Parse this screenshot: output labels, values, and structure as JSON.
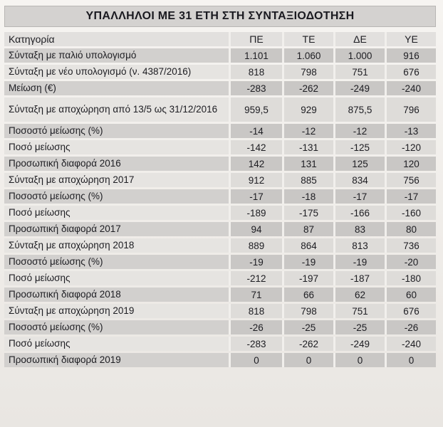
{
  "document": {
    "title": "ΥΠΑΛΛΗΛΟΙ ΜΕ 31 ΕΤΗ ΣΤΗ ΣΥΝΤΑΞΙΟΔΟΤΗΣΗ"
  },
  "table": {
    "header": {
      "label": "Κατηγορία",
      "columns": [
        "ΠΕ",
        "ΤΕ",
        "ΔΕ",
        "ΥΕ"
      ]
    },
    "rows": [
      {
        "label": "Σύνταξη με παλιό υπολογισμό",
        "values": [
          "1.101",
          "1.060",
          "1.000",
          "916"
        ]
      },
      {
        "label": "Σύνταξη με νέο υπολογισμό (ν. 4387/2016)",
        "values": [
          "818",
          "798",
          "751",
          "676"
        ]
      },
      {
        "label": "Μείωση (€)",
        "values": [
          "-283",
          "-262",
          "-249",
          "-240"
        ]
      },
      {
        "label": "Σύνταξη με αποχώρηση από 13/5 ως 31/12/2016",
        "values": [
          "959,5",
          "929",
          "875,5",
          "796"
        ]
      },
      {
        "label": "Ποσοστό μείωσης (%)",
        "values": [
          "-14",
          "-12",
          "-12",
          "-13"
        ]
      },
      {
        "label": "Ποσό μείωσης",
        "values": [
          "-142",
          "-131",
          "-125",
          "-120"
        ]
      },
      {
        "label": "Προσωπική διαφορά 2016",
        "values": [
          "142",
          "131",
          "125",
          "120"
        ]
      },
      {
        "label": "Σύνταξη με αποχώρηση 2017",
        "values": [
          "912",
          "885",
          "834",
          "756"
        ]
      },
      {
        "label": "Ποσοστό μείωσης (%)",
        "values": [
          "-17",
          "-18",
          "-17",
          "-17"
        ]
      },
      {
        "label": "Ποσό μείωσης",
        "values": [
          "-189",
          "-175",
          "-166",
          "-160"
        ]
      },
      {
        "label": "Προσωπική διαφορά 2017",
        "values": [
          "94",
          "87",
          "83",
          "80"
        ]
      },
      {
        "label": "Σύνταξη με αποχώρηση 2018",
        "values": [
          "889",
          "864",
          "813",
          "736"
        ]
      },
      {
        "label": "Ποσοστό μείωσης (%)",
        "values": [
          "-19",
          "-19",
          "-19",
          "-20"
        ]
      },
      {
        "label": "Ποσό μείωσης",
        "values": [
          "-212",
          "-197",
          "-187",
          "-180"
        ]
      },
      {
        "label": "Προσωπική διαφορά 2018",
        "values": [
          "71",
          "66",
          "62",
          "60"
        ]
      },
      {
        "label": "Σύνταξη με αποχώρηση 2019",
        "values": [
          "818",
          "798",
          "751",
          "676"
        ]
      },
      {
        "label": "Ποσοστό μείωσης (%)",
        "values": [
          "-26",
          "-25",
          "-25",
          "-26"
        ]
      },
      {
        "label": "Ποσό μείωσης",
        "values": [
          "-283",
          "-262",
          "-249",
          "-240"
        ]
      },
      {
        "label": "Προσωπική διαφορά 2019",
        "values": [
          "0",
          "0",
          "0",
          "0"
        ]
      }
    ]
  },
  "colors": {
    "page_background": "#f4f2ef",
    "row_shade_dark": "#d2d0ce",
    "row_shade_light": "#e6e4e1",
    "text": "#1d1d22"
  }
}
